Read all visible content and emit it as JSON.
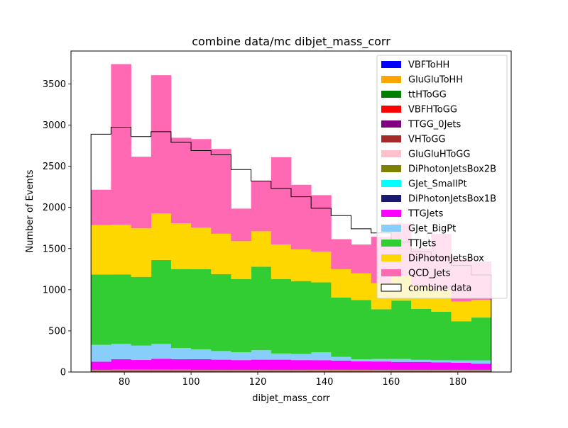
{
  "chart_data": {
    "type": "bar",
    "title": "combine data/mc dibjet_mass_corr",
    "xlabel": "dibjet_mass_corr",
    "ylabel": "Number of Events",
    "xlim": [
      64,
      196
    ],
    "ylim": [
      0,
      3900
    ],
    "xticks": [
      80,
      100,
      120,
      140,
      160,
      180
    ],
    "yticks": [
      0,
      500,
      1000,
      1500,
      2000,
      2500,
      3000,
      3500
    ],
    "grid": false,
    "legend_position": "top-right",
    "bin_edges": [
      70,
      76,
      82,
      88,
      94,
      100,
      106,
      112,
      118,
      124,
      130,
      136,
      142,
      148,
      154,
      160,
      166,
      172,
      178,
      184,
      190
    ],
    "series": [
      {
        "name": "VBFToHH",
        "color": "#0000ff",
        "values": [
          1,
          1,
          1,
          1,
          1,
          1,
          1,
          1,
          1,
          1,
          1,
          1,
          1,
          1,
          1,
          1,
          1,
          1,
          1,
          1
        ]
      },
      {
        "name": "GluGluToHH",
        "color": "#ffa500",
        "values": [
          2,
          2,
          2,
          2,
          2,
          2,
          2,
          2,
          2,
          2,
          2,
          2,
          2,
          2,
          2,
          2,
          2,
          2,
          2,
          2
        ]
      },
      {
        "name": "ttHToGG",
        "color": "#008000",
        "values": [
          3,
          3,
          3,
          3,
          3,
          3,
          3,
          3,
          3,
          3,
          3,
          3,
          3,
          3,
          3,
          3,
          3,
          3,
          3,
          3
        ]
      },
      {
        "name": "VBFHToGG",
        "color": "#ff0000",
        "values": [
          2,
          2,
          2,
          2,
          2,
          2,
          2,
          2,
          2,
          2,
          2,
          2,
          2,
          2,
          2,
          2,
          2,
          2,
          2,
          2
        ]
      },
      {
        "name": "TTGG_0Jets",
        "color": "#800080",
        "values": [
          8,
          9,
          9,
          9,
          9,
          8,
          8,
          8,
          8,
          8,
          8,
          7,
          7,
          7,
          6,
          6,
          6,
          6,
          5,
          5
        ]
      },
      {
        "name": "VHToGG",
        "color": "#a52a2a",
        "values": [
          3,
          3,
          3,
          3,
          3,
          3,
          3,
          3,
          3,
          3,
          3,
          3,
          3,
          3,
          3,
          3,
          3,
          3,
          3,
          3
        ]
      },
      {
        "name": "GluGluHToGG",
        "color": "#ffc0cb",
        "values": [
          5,
          5,
          5,
          5,
          5,
          5,
          5,
          5,
          5,
          5,
          5,
          5,
          5,
          5,
          5,
          5,
          5,
          5,
          5,
          5
        ]
      },
      {
        "name": "DiPhotonJetsBox2B",
        "color": "#808000",
        "values": [
          3,
          3,
          3,
          3,
          3,
          3,
          3,
          3,
          3,
          3,
          3,
          3,
          3,
          3,
          3,
          3,
          3,
          3,
          3,
          3
        ]
      },
      {
        "name": "GJet_SmallPt",
        "color": "#00ffff",
        "values": [
          1,
          1,
          1,
          1,
          1,
          1,
          1,
          1,
          1,
          1,
          1,
          1,
          1,
          1,
          1,
          1,
          1,
          1,
          1,
          1
        ]
      },
      {
        "name": "DiPhotonJetsBox1B",
        "color": "#191970",
        "values": [
          2,
          2,
          2,
          2,
          2,
          2,
          2,
          2,
          2,
          2,
          2,
          2,
          2,
          2,
          2,
          2,
          2,
          2,
          2,
          2
        ]
      },
      {
        "name": "TTGJets",
        "color": "#ff00ff",
        "values": [
          95,
          125,
          115,
          130,
          125,
          125,
          120,
          115,
          120,
          120,
          115,
          115,
          110,
          100,
          100,
          95,
          95,
          90,
          85,
          75
        ]
      },
      {
        "name": "GJet_BigPt",
        "color": "#87cefa",
        "values": [
          205,
          185,
          175,
          180,
          135,
          120,
          105,
          95,
          115,
          75,
          75,
          95,
          45,
          25,
          30,
          35,
          25,
          25,
          30,
          40
        ]
      },
      {
        "name": "TTJets",
        "color": "#32cd32",
        "values": [
          855,
          845,
          835,
          1020,
          960,
          975,
          935,
          890,
          1015,
          905,
          885,
          850,
          720,
          720,
          605,
          710,
          620,
          590,
          475,
          520
        ]
      },
      {
        "name": "DiPhotonJetsBox",
        "color": "#ffd700",
        "values": [
          600,
          605,
          590,
          565,
          555,
          505,
          490,
          460,
          430,
          420,
          385,
          375,
          345,
          325,
          315,
          300,
          280,
          265,
          240,
          215
        ]
      },
      {
        "name": "QCD_Jets",
        "color": "#ff69b4",
        "values": [
          430,
          1950,
          870,
          1680,
          1040,
          1075,
          1030,
          395,
          615,
          1060,
          785,
          685,
          365,
          350,
          565,
          635,
          455,
          680,
          510,
          465
        ]
      }
    ],
    "data_histogram": {
      "name": "combine data",
      "values": [
        2890,
        2975,
        2860,
        2920,
        2790,
        2690,
        2640,
        2460,
        2320,
        2230,
        2130,
        1990,
        1900,
        1740,
        1690,
        1580,
        1460,
        1390,
        1295,
        1180
      ]
    }
  }
}
